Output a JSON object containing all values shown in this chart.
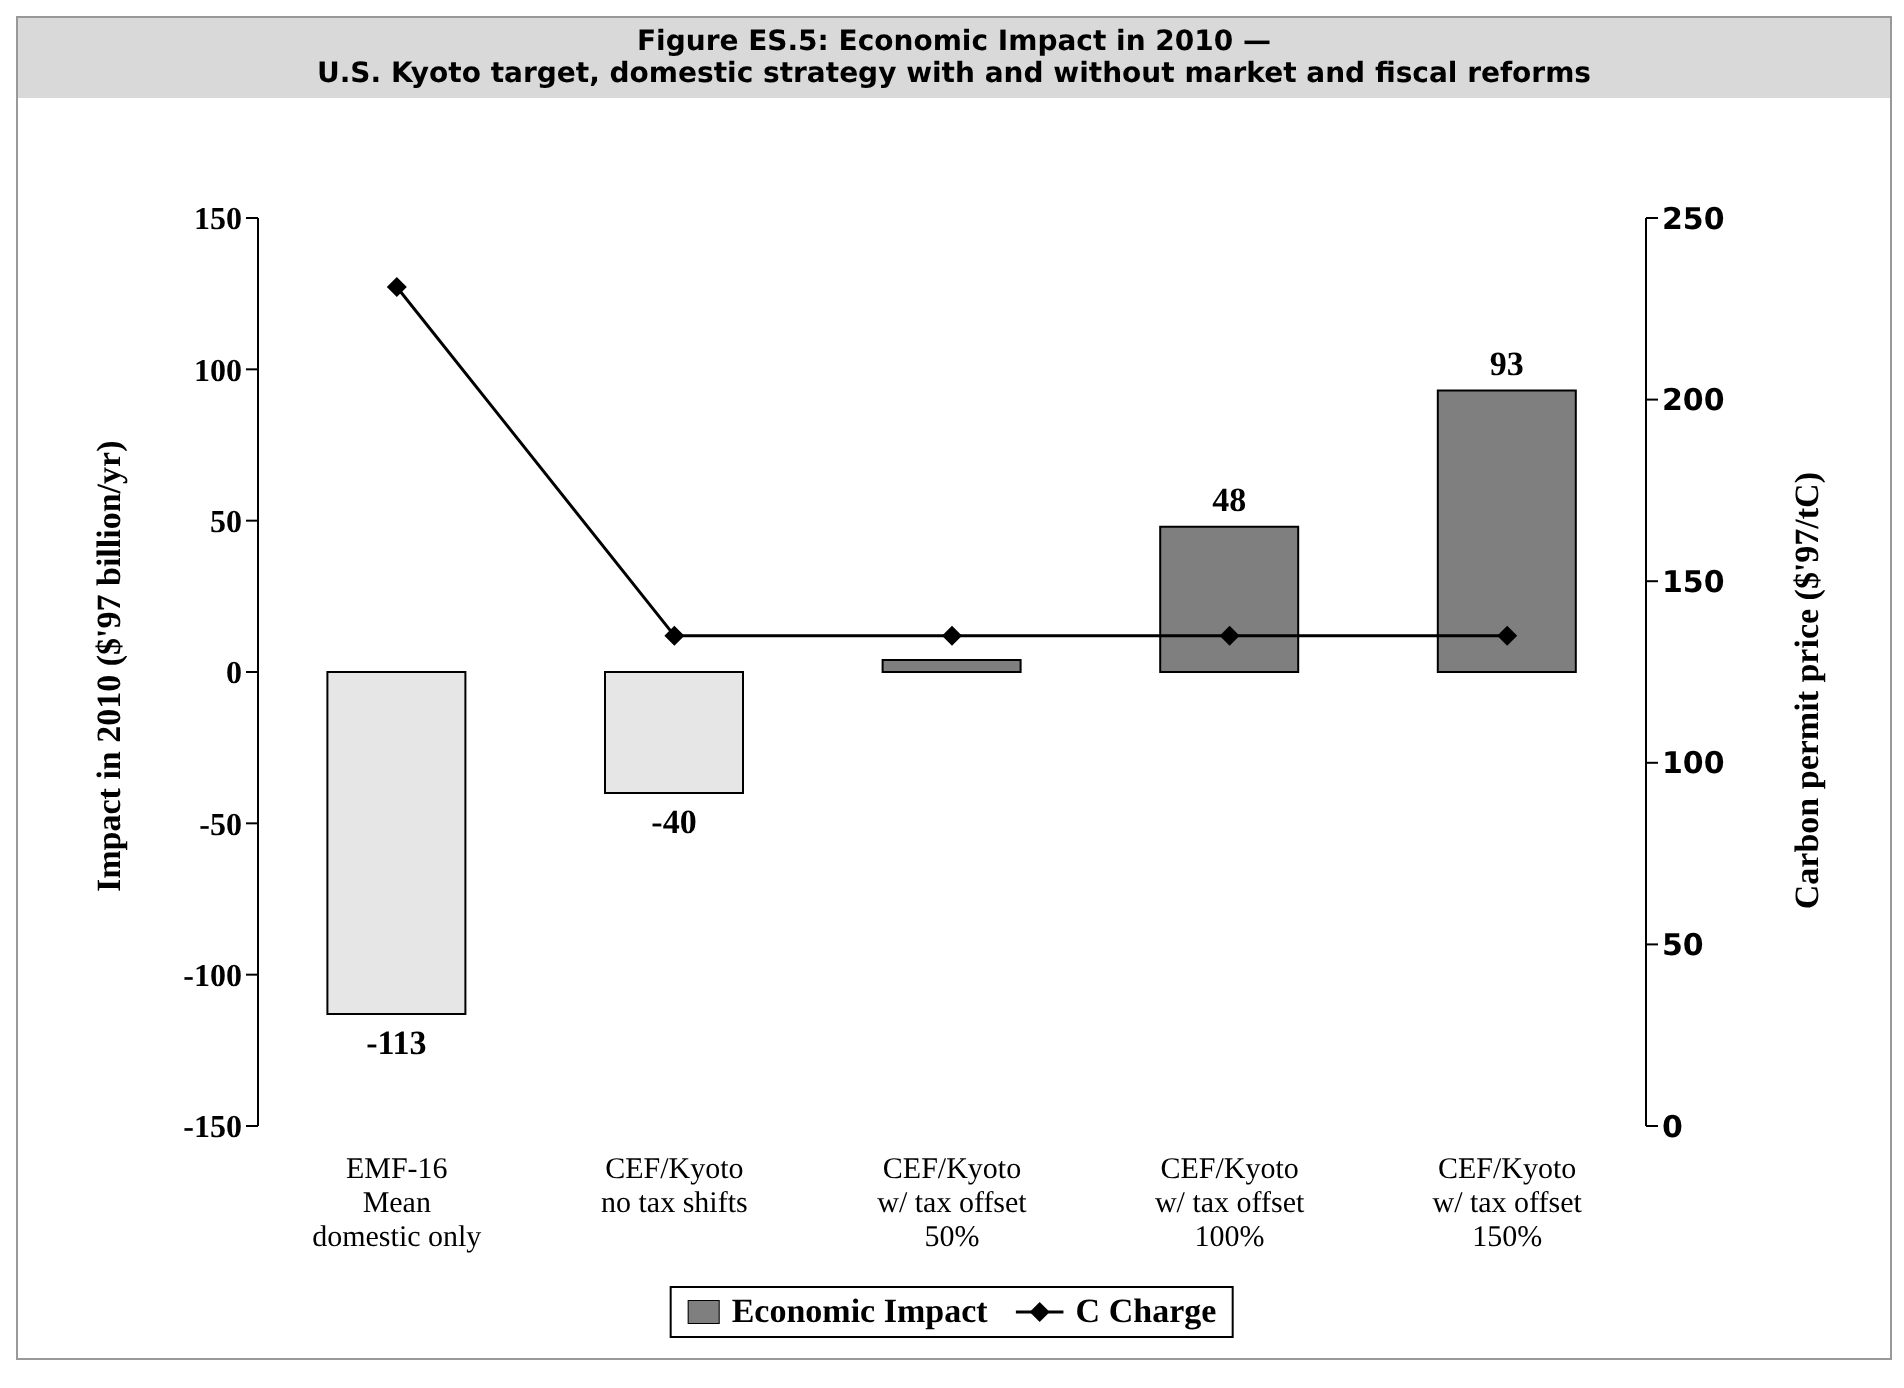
{
  "chart_data": {
    "type": "bar",
    "title": "Figure ES.5: Economic Impact in 2010 —\nU.S. Kyoto target, domestic strategy with and without market and fiscal reforms",
    "categories": [
      "EMF-16\nMean\ndomestic only",
      "CEF/Kyoto\nno tax shifts",
      "CEF/Kyoto\nw/ tax offset\n50%",
      "CEF/Kyoto\nw/ tax offset\n100%",
      "CEF/Kyoto\nw/ tax offset\n150%"
    ],
    "series": [
      {
        "name": "Economic Impact",
        "color": "#7f7f7f",
        "colors": [
          "#e6e6e6",
          "#e6e6e6",
          "#7f7f7f",
          "#7f7f7f",
          "#7f7f7f"
        ],
        "values": [
          -113,
          -40,
          4,
          48,
          93
        ],
        "value_labels": [
          "-113",
          "-40",
          null,
          "48",
          "93"
        ]
      },
      {
        "name": "C Charge",
        "type": "line",
        "axis": "y2",
        "color": "#000000",
        "marker": "diamond",
        "values": [
          231,
          135,
          135,
          135,
          135
        ]
      }
    ],
    "ylabel": "Impact in 2010 ($'97 billion/yr)",
    "y2label": "Carbon permit price ($'97/tC)",
    "ylim": [
      -150,
      150
    ],
    "yticks": [
      -150,
      -100,
      -50,
      0,
      50,
      100,
      150
    ],
    "y2lim": [
      0,
      250
    ],
    "y2ticks": [
      0,
      50,
      100,
      150,
      200,
      250
    ],
    "grid": false,
    "legend": "bottom"
  }
}
